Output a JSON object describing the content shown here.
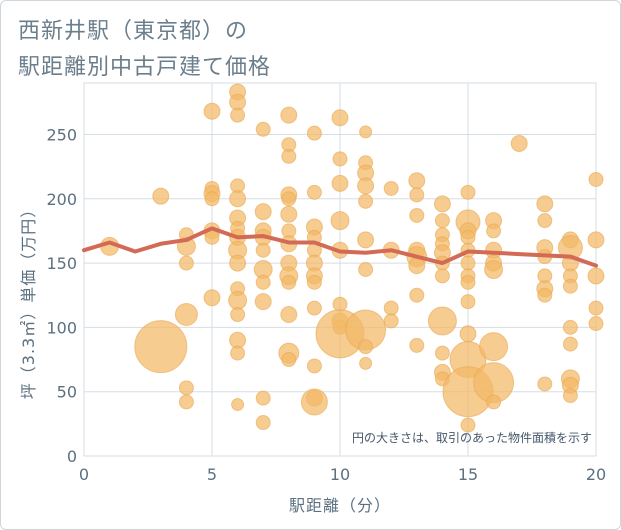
{
  "title": {
    "line1": "西新井駅（東京都）の",
    "line2": "駅距離別中古戸建て価格"
  },
  "chart_data": {
    "type": "scatter",
    "xlabel": "駅距離（分）",
    "ylabel": "坪（3.3㎡）単価（万円）",
    "xlim": [
      0,
      20
    ],
    "ylim": [
      0,
      290
    ],
    "xticks": [
      0,
      5,
      10,
      15,
      20
    ],
    "yticks": [
      0,
      50,
      100,
      150,
      200,
      250
    ],
    "grid": true,
    "note": "円の大きさは、取引のあった物件面積を示す",
    "colors": {
      "bubble": "#f3b867",
      "line": "#d36a55",
      "axis_text": "#5c7080",
      "grid": "#d6dde3"
    },
    "trend_line": {
      "x": [
        0,
        1,
        2,
        3,
        4,
        5,
        6,
        7,
        8,
        9,
        10,
        11,
        12,
        13,
        14,
        15,
        16,
        17,
        18,
        19,
        20
      ],
      "y": [
        160,
        166,
        159,
        165,
        168,
        177,
        170,
        171,
        166,
        166,
        159,
        158,
        160,
        155,
        150,
        159,
        158,
        157,
        156,
        155,
        148
      ]
    },
    "bubbles": [
      [
        1,
        163,
        9
      ],
      [
        3,
        202,
        8
      ],
      [
        3,
        85,
        26
      ],
      [
        4,
        172,
        7
      ],
      [
        4,
        163,
        9
      ],
      [
        4,
        150,
        7
      ],
      [
        4,
        110,
        11
      ],
      [
        4,
        53,
        7
      ],
      [
        4,
        42,
        7
      ],
      [
        5,
        268,
        8
      ],
      [
        5,
        208,
        7
      ],
      [
        5,
        204,
        8
      ],
      [
        5,
        200,
        7
      ],
      [
        5,
        175,
        8
      ],
      [
        5,
        170,
        7
      ],
      [
        5,
        123,
        8
      ],
      [
        6,
        283,
        8
      ],
      [
        6,
        275,
        8
      ],
      [
        6,
        265,
        7
      ],
      [
        6,
        210,
        7
      ],
      [
        6,
        200,
        8
      ],
      [
        6,
        185,
        8
      ],
      [
        6,
        177,
        7
      ],
      [
        6,
        170,
        8
      ],
      [
        6,
        160,
        9
      ],
      [
        6,
        150,
        8
      ],
      [
        6,
        130,
        7
      ],
      [
        6,
        121,
        9
      ],
      [
        6,
        110,
        7
      ],
      [
        6,
        90,
        8
      ],
      [
        6,
        80,
        7
      ],
      [
        6,
        40,
        6
      ],
      [
        7,
        254,
        7
      ],
      [
        7,
        190,
        8
      ],
      [
        7,
        175,
        8
      ],
      [
        7,
        170,
        8
      ],
      [
        7,
        160,
        7
      ],
      [
        7,
        145,
        9
      ],
      [
        7,
        135,
        7
      ],
      [
        7,
        120,
        8
      ],
      [
        7,
        45,
        7
      ],
      [
        7,
        26,
        7
      ],
      [
        8,
        265,
        8
      ],
      [
        8,
        242,
        7
      ],
      [
        8,
        233,
        7
      ],
      [
        8,
        203,
        8
      ],
      [
        8,
        200,
        7
      ],
      [
        8,
        188,
        8
      ],
      [
        8,
        175,
        7
      ],
      [
        8,
        165,
        8
      ],
      [
        8,
        150,
        8
      ],
      [
        8,
        140,
        9
      ],
      [
        8,
        135,
        7
      ],
      [
        8,
        110,
        8
      ],
      [
        8,
        80,
        10
      ],
      [
        8,
        75,
        7
      ],
      [
        9,
        251,
        7
      ],
      [
        9,
        205,
        7
      ],
      [
        9,
        178,
        8
      ],
      [
        9,
        170,
        7
      ],
      [
        9,
        160,
        7
      ],
      [
        9,
        150,
        8
      ],
      [
        9,
        140,
        8
      ],
      [
        9,
        135,
        7
      ],
      [
        9,
        115,
        7
      ],
      [
        9,
        70,
        7
      ],
      [
        9,
        45,
        8
      ],
      [
        9,
        42,
        13
      ],
      [
        10,
        263,
        8
      ],
      [
        10,
        231,
        7
      ],
      [
        10,
        212,
        8
      ],
      [
        10,
        183,
        9
      ],
      [
        10,
        160,
        8
      ],
      [
        10,
        118,
        7
      ],
      [
        10,
        105,
        8
      ],
      [
        10,
        100,
        7
      ],
      [
        10,
        95,
        24
      ],
      [
        11,
        252,
        6
      ],
      [
        11,
        228,
        7
      ],
      [
        11,
        220,
        8
      ],
      [
        11,
        210,
        8
      ],
      [
        11,
        198,
        7
      ],
      [
        11,
        168,
        8
      ],
      [
        11,
        145,
        7
      ],
      [
        11,
        98,
        20
      ],
      [
        11,
        85,
        7
      ],
      [
        11,
        72,
        6
      ],
      [
        12,
        208,
        7
      ],
      [
        12,
        160,
        8
      ],
      [
        12,
        115,
        7
      ],
      [
        12,
        105,
        7
      ],
      [
        13,
        214,
        8
      ],
      [
        13,
        203,
        7
      ],
      [
        13,
        187,
        7
      ],
      [
        13,
        160,
        8
      ],
      [
        13,
        155,
        10
      ],
      [
        13,
        148,
        8
      ],
      [
        13,
        125,
        7
      ],
      [
        13,
        86,
        7
      ],
      [
        14,
        196,
        8
      ],
      [
        14,
        183,
        7
      ],
      [
        14,
        172,
        7
      ],
      [
        14,
        165,
        7
      ],
      [
        14,
        158,
        8
      ],
      [
        14,
        150,
        7
      ],
      [
        14,
        140,
        7
      ],
      [
        14,
        105,
        14
      ],
      [
        14,
        80,
        7
      ],
      [
        14,
        65,
        8
      ],
      [
        14,
        60,
        7
      ],
      [
        15,
        205,
        7
      ],
      [
        15,
        182,
        12
      ],
      [
        15,
        175,
        8
      ],
      [
        15,
        170,
        7
      ],
      [
        15,
        160,
        7
      ],
      [
        15,
        150,
        7
      ],
      [
        15,
        140,
        7
      ],
      [
        15,
        135,
        7
      ],
      [
        15,
        120,
        7
      ],
      [
        15,
        95,
        8
      ],
      [
        15,
        75,
        18
      ],
      [
        15,
        50,
        25
      ],
      [
        15,
        24,
        7
      ],
      [
        16,
        183,
        8
      ],
      [
        16,
        175,
        7
      ],
      [
        16,
        160,
        8
      ],
      [
        16,
        150,
        8
      ],
      [
        16,
        145,
        9
      ],
      [
        16,
        85,
        14
      ],
      [
        16,
        57,
        20
      ],
      [
        16,
        42,
        7
      ],
      [
        17,
        243,
        8
      ],
      [
        18,
        196,
        8
      ],
      [
        18,
        183,
        7
      ],
      [
        18,
        162,
        8
      ],
      [
        18,
        155,
        7
      ],
      [
        18,
        140,
        7
      ],
      [
        18,
        130,
        8
      ],
      [
        18,
        125,
        7
      ],
      [
        18,
        56,
        7
      ],
      [
        19,
        168,
        8
      ],
      [
        19,
        162,
        12
      ],
      [
        19,
        150,
        8
      ],
      [
        19,
        140,
        7
      ],
      [
        19,
        132,
        7
      ],
      [
        19,
        100,
        7
      ],
      [
        19,
        87,
        7
      ],
      [
        19,
        60,
        9
      ],
      [
        19,
        55,
        8
      ],
      [
        19,
        47,
        7
      ],
      [
        20,
        215,
        7
      ],
      [
        20,
        168,
        8
      ],
      [
        20,
        140,
        8
      ],
      [
        20,
        115,
        7
      ],
      [
        20,
        103,
        7
      ]
    ]
  }
}
